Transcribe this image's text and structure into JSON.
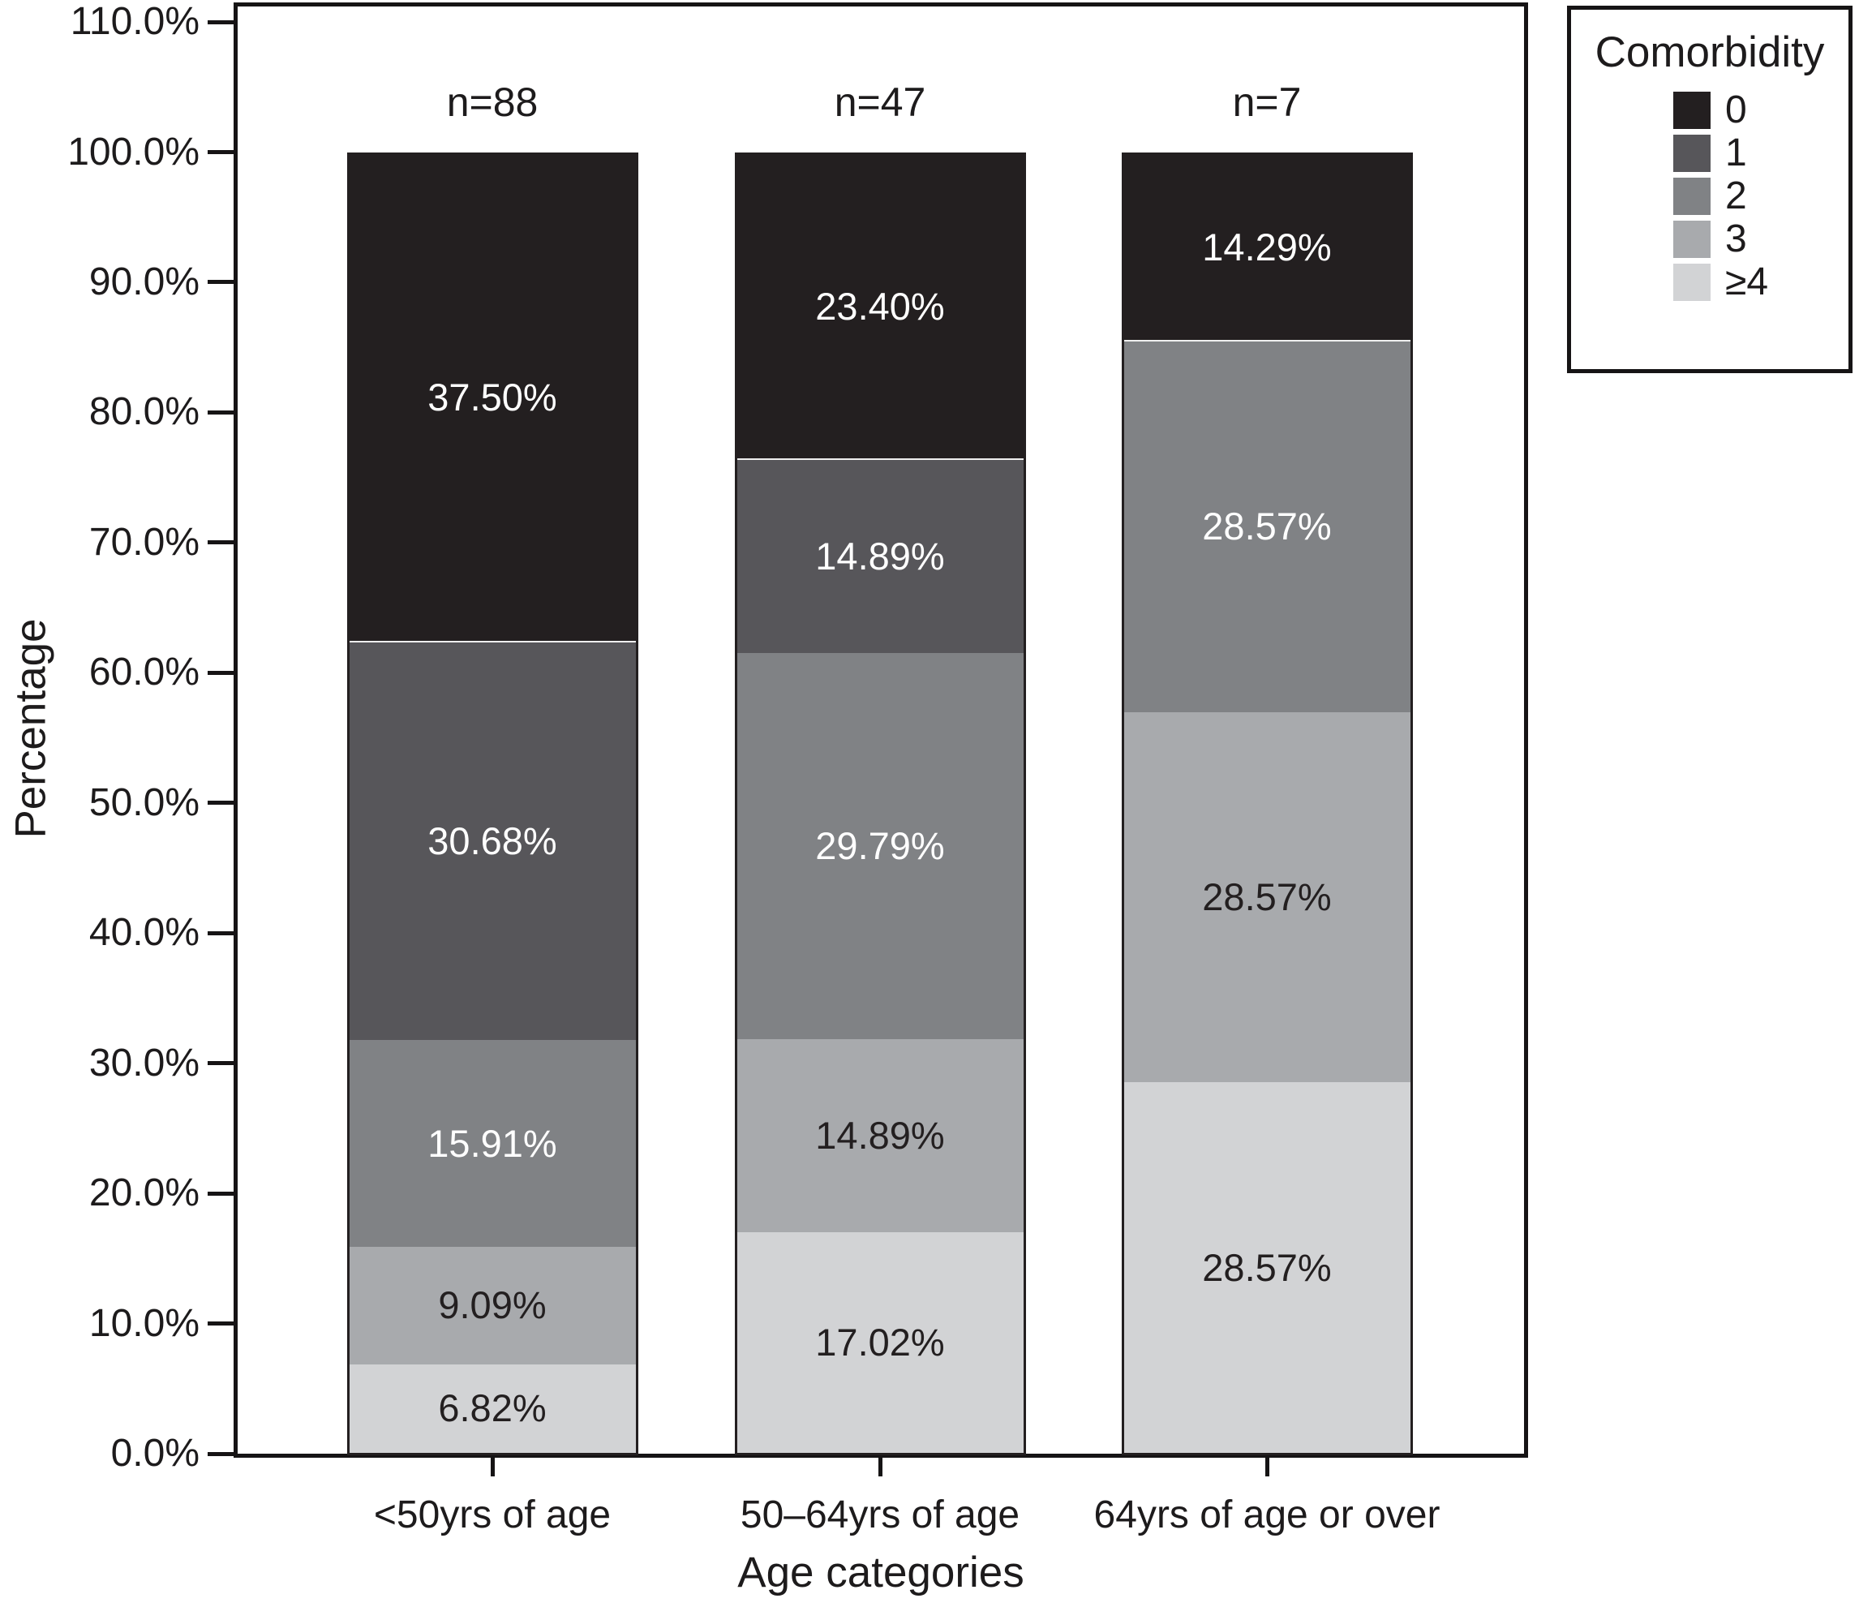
{
  "figure": {
    "y_axis_title": "Percentage",
    "x_axis_title": "Age categories",
    "legend_title": "Comorbidity"
  },
  "chart_data": {
    "type": "bar",
    "subtype": "stacked-percent",
    "title": "",
    "xlabel": "Age categories",
    "ylabel": "Percentage",
    "ylim": [
      0,
      110
    ],
    "y_tick_step": 10,
    "grid": false,
    "legend_position": "outside-top-right",
    "y_ticks": [
      {
        "value": 0,
        "label": "0.0%"
      },
      {
        "value": 10,
        "label": "10.0%"
      },
      {
        "value": 20,
        "label": "20.0%"
      },
      {
        "value": 30,
        "label": "30.0%"
      },
      {
        "value": 40,
        "label": "40.0%"
      },
      {
        "value": 50,
        "label": "50.0%"
      },
      {
        "value": 60,
        "label": "60.0%"
      },
      {
        "value": 70,
        "label": "70.0%"
      },
      {
        "value": 80,
        "label": "80.0%"
      },
      {
        "value": 90,
        "label": "90.0%"
      },
      {
        "value": 100,
        "label": "100.0%"
      },
      {
        "value": 110,
        "label": "110.0%"
      }
    ],
    "categories": [
      "<50yrs of age",
      "50–64yrs of age",
      "64yrs of age or over"
    ],
    "group_counts": [
      "n=88",
      "n=47",
      "n=7"
    ],
    "legend": {
      "title": "Comorbidity",
      "entries": [
        {
          "label": "0",
          "color": "#231f20"
        },
        {
          "label": "1",
          "color": "#57565a"
        },
        {
          "label": "2",
          "color": "#808285"
        },
        {
          "label": "3",
          "color": "#a8aaad"
        },
        {
          "label": "≥4",
          "color": "#d2d3d5"
        }
      ]
    },
    "series": [
      {
        "name": "0",
        "color": "#231f20",
        "label_color": "#ffffff",
        "values": [
          37.5,
          23.4,
          14.29
        ],
        "labels": [
          "37.50%",
          "23.40%",
          "14.29%"
        ]
      },
      {
        "name": "1",
        "color": "#57565a",
        "label_color": "#ffffff",
        "values": [
          30.68,
          14.89,
          0
        ],
        "labels": [
          "30.68%",
          "14.89%",
          null
        ]
      },
      {
        "name": "2",
        "color": "#808285",
        "label_color": "#ffffff",
        "values": [
          15.91,
          29.79,
          28.57
        ],
        "labels": [
          "15.91%",
          "29.79%",
          "28.57%"
        ]
      },
      {
        "name": "3",
        "color": "#a8aaad",
        "label_color": "#231f20",
        "values": [
          9.09,
          14.89,
          28.57
        ],
        "labels": [
          "9.09%",
          "14.89%",
          "28.57%"
        ]
      },
      {
        "name": "≥4",
        "color": "#d2d3d5",
        "label_color": "#231f20",
        "values": [
          6.82,
          17.02,
          28.57
        ],
        "labels": [
          "6.82%",
          "17.02%",
          "28.57%"
        ]
      }
    ]
  }
}
